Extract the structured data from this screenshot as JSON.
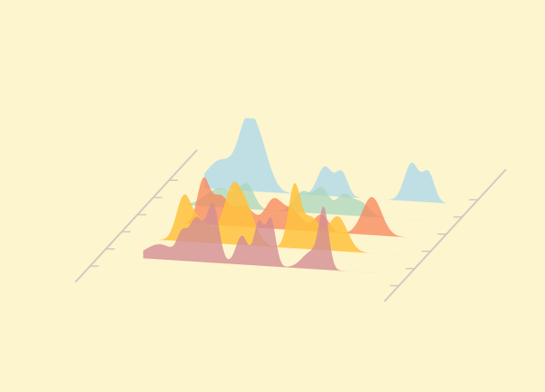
{
  "chart_data": {
    "type": "area",
    "title": "",
    "xlabel": "",
    "ylabel": "",
    "grid": false,
    "legend": "none",
    "background": "#fdf5ce",
    "axis_color": "#cfcbbf",
    "series": [
      {
        "color": "#9ed2ef",
        "opacity": 0.65,
        "peaks": [
          {
            "center": 0.07,
            "width": 0.06,
            "height": 0.42
          },
          {
            "center": 0.17,
            "width": 0.035,
            "height": 0.55
          },
          {
            "center": 0.22,
            "width": 0.045,
            "height": 0.75
          },
          {
            "center": 0.5,
            "width": 0.03,
            "height": 0.42
          },
          {
            "center": 0.57,
            "width": 0.025,
            "height": 0.35
          },
          {
            "center": 0.86,
            "width": 0.03,
            "height": 0.55
          },
          {
            "center": 0.93,
            "width": 0.025,
            "height": 0.42
          }
        ]
      },
      {
        "color": "#a9d5bd",
        "opacity": 0.75,
        "peaks": [
          {
            "center": 0.13,
            "width": 0.06,
            "height": 0.28
          },
          {
            "center": 0.24,
            "width": 0.03,
            "height": 0.32
          },
          {
            "center": 0.47,
            "width": 0.035,
            "height": 0.3
          },
          {
            "center": 0.55,
            "width": 0.03,
            "height": 0.36
          },
          {
            "center": 0.64,
            "width": 0.03,
            "height": 0.28
          },
          {
            "center": 0.71,
            "width": 0.035,
            "height": 0.2
          }
        ]
      },
      {
        "color": "#f7845a",
        "opacity": 0.75,
        "peaks": [
          {
            "center": 0.12,
            "width": 0.025,
            "height": 0.62
          },
          {
            "center": 0.19,
            "width": 0.035,
            "height": 0.42
          },
          {
            "center": 0.29,
            "width": 0.04,
            "height": 0.3
          },
          {
            "center": 0.41,
            "width": 0.035,
            "height": 0.4
          },
          {
            "center": 0.49,
            "width": 0.04,
            "height": 0.28
          },
          {
            "center": 0.61,
            "width": 0.03,
            "height": 0.25
          },
          {
            "center": 0.82,
            "width": 0.04,
            "height": 0.55
          }
        ]
      },
      {
        "color": "#ffc23d",
        "opacity": 0.85,
        "peaks": [
          {
            "center": 0.1,
            "width": 0.03,
            "height": 0.55
          },
          {
            "center": 0.17,
            "width": 0.05,
            "height": 0.32
          },
          {
            "center": 0.3,
            "width": 0.035,
            "height": 0.7
          },
          {
            "center": 0.36,
            "width": 0.04,
            "height": 0.5
          },
          {
            "center": 0.56,
            "width": 0.025,
            "height": 0.88
          },
          {
            "center": 0.63,
            "width": 0.035,
            "height": 0.45
          },
          {
            "center": 0.74,
            "width": 0.04,
            "height": 0.5
          }
        ]
      },
      {
        "color": "#d38f95",
        "opacity": 0.8,
        "peaks": [
          {
            "center": 0.07,
            "width": 0.06,
            "height": 0.22
          },
          {
            "center": 0.16,
            "width": 0.02,
            "height": 0.3
          },
          {
            "center": 0.22,
            "width": 0.03,
            "height": 0.62
          },
          {
            "center": 0.29,
            "width": 0.025,
            "height": 0.82
          },
          {
            "center": 0.41,
            "width": 0.025,
            "height": 0.42
          },
          {
            "center": 0.48,
            "width": 0.02,
            "height": 0.62
          },
          {
            "center": 0.53,
            "width": 0.02,
            "height": 0.68
          },
          {
            "center": 0.7,
            "width": 0.04,
            "height": 0.25
          },
          {
            "center": 0.75,
            "width": 0.02,
            "height": 0.8
          }
        ]
      }
    ]
  }
}
